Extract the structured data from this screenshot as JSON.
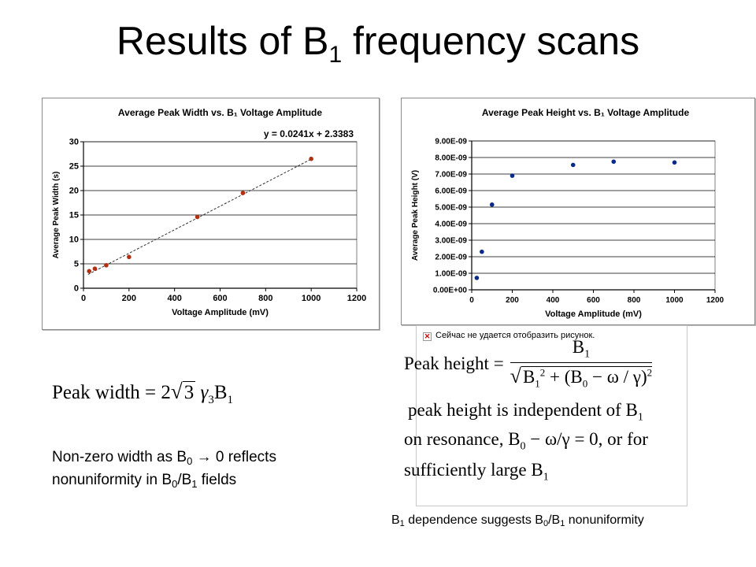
{
  "slide_title": {
    "main": "Results of B",
    "sub": "1",
    "rest": " frequency scans"
  },
  "chart_data": [
    {
      "type": "scatter",
      "title": "Average Peak Width vs. B₁ Voltage Amplitude",
      "xlabel": "Voltage Amplitude (mV)",
      "ylabel": "Average Peak Width (s)",
      "xlim": [
        0,
        1200
      ],
      "ylim": [
        0,
        30
      ],
      "x_ticks": [
        0,
        200,
        400,
        600,
        800,
        1000,
        1200
      ],
      "y_ticks": [
        0,
        5,
        10,
        15,
        20,
        25,
        30
      ],
      "y_tick_labels": [
        "0",
        "5",
        "10",
        "15",
        "20",
        "25",
        "30"
      ],
      "grid": true,
      "marker_color": "#b03010",
      "trendline": {
        "equation": "y = 0.0241x + 2.3383",
        "slope": 0.0241,
        "intercept": 2.3383,
        "x_range": [
          20,
          1000
        ],
        "style": "dashed"
      },
      "x": [
        25,
        50,
        100,
        200,
        500,
        700,
        1000
      ],
      "y": [
        3.5,
        4.0,
        4.7,
        6.4,
        14.6,
        19.5,
        26.5
      ]
    },
    {
      "type": "scatter",
      "title": "Average Peak Height vs. B₁ Voltage Amplitude",
      "xlabel": "Voltage Amplitude (mV)",
      "ylabel": "Average Peak Height (V)",
      "xlim": [
        0,
        1200
      ],
      "ylim": [
        0,
        9e-09
      ],
      "x_ticks": [
        0,
        200,
        400,
        600,
        800,
        1000,
        1200
      ],
      "y_ticks": [
        0,
        1e-09,
        2e-09,
        3e-09,
        4e-09,
        5e-09,
        6e-09,
        7e-09,
        8e-09,
        9e-09
      ],
      "y_tick_labels": [
        "0.00E+00",
        "1.00E-09",
        "2.00E-09",
        "3.00E-09",
        "4.00E-09",
        "5.00E-09",
        "6.00E-09",
        "7.00E-09",
        "8.00E-09",
        "9.00E-09"
      ],
      "grid": true,
      "marker_color": "#0a2a8a",
      "x": [
        25,
        50,
        100,
        200,
        500,
        700,
        1000
      ],
      "y": [
        7.2e-10,
        2.3e-09,
        5.15e-09,
        6.9e-09,
        7.55e-09,
        7.75e-09,
        7.7e-09
      ]
    }
  ],
  "left_formula": {
    "lhs": "Peak width",
    "eq": " = 2",
    "root": "3",
    "gamma": "γ",
    "gamma_sub": "3",
    "b": "B",
    "b_sub": "1"
  },
  "left_note": {
    "l1_a": "Non-zero width as B",
    "l1_sub": "0",
    "l1_b": " → 0 reflects",
    "l2_a": "nonuniformity in B",
    "l2_sub1": "0",
    "l2_mid": "/B",
    "l2_sub2": "1",
    "l2_b": " fields"
  },
  "broken_image_text": "Сейчас не удается отобразить рисунок.",
  "right_formula": {
    "lhs": "Peak height =",
    "num": "B",
    "num_sub": "1",
    "den_b1": "B",
    "den_b1_sub": "1",
    "den_b1_sup": "2",
    "den_plus": " + (B",
    "den_b0_sub": "0",
    "den_rest": " − ω / γ)",
    "den_sup": "2",
    "line1": "peak height is independent of B",
    "line1_sub": "1",
    "line2_a": "on resonance, B",
    "line2_sub": "0",
    "line2_b": " − ω/γ  = 0, or for",
    "line3": "sufficiently large B",
    "line3_sub": "1"
  },
  "caption": {
    "a": "B",
    "sub1": "1",
    "b": " dependence suggests B",
    "sub2": "0",
    "c": "/B",
    "sub3": "1",
    "d": " nonuniformity"
  }
}
